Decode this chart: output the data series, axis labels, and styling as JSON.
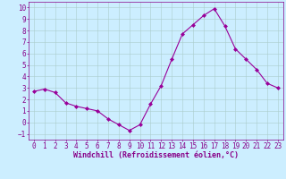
{
  "x": [
    0,
    1,
    2,
    3,
    4,
    5,
    6,
    7,
    8,
    9,
    10,
    11,
    12,
    13,
    14,
    15,
    16,
    17,
    18,
    19,
    20,
    21,
    22,
    23
  ],
  "y": [
    2.7,
    2.9,
    2.6,
    1.7,
    1.4,
    1.2,
    1.0,
    0.3,
    -0.2,
    -0.7,
    -0.2,
    1.6,
    3.2,
    5.5,
    7.7,
    8.5,
    9.3,
    9.9,
    8.4,
    6.4,
    5.5,
    4.6,
    3.4,
    3.0
  ],
  "line_color": "#990099",
  "marker": "D",
  "markersize": 2.0,
  "linewidth": 0.8,
  "bg_color": "#cceeff",
  "grid_color": "#aacccc",
  "xlabel": "Windchill (Refroidissement éolien,°C)",
  "xlabel_color": "#880088",
  "tick_color": "#880088",
  "ylim": [
    -1.5,
    10.5
  ],
  "xlim": [
    -0.5,
    23.5
  ],
  "yticks": [
    -1,
    0,
    1,
    2,
    3,
    4,
    5,
    6,
    7,
    8,
    9,
    10
  ],
  "xticks": [
    0,
    1,
    2,
    3,
    4,
    5,
    6,
    7,
    8,
    9,
    10,
    11,
    12,
    13,
    14,
    15,
    16,
    17,
    18,
    19,
    20,
    21,
    22,
    23
  ],
  "label_fontsize": 6.0,
  "tick_fontsize": 5.5,
  "figsize": [
    3.2,
    2.0
  ],
  "dpi": 100
}
